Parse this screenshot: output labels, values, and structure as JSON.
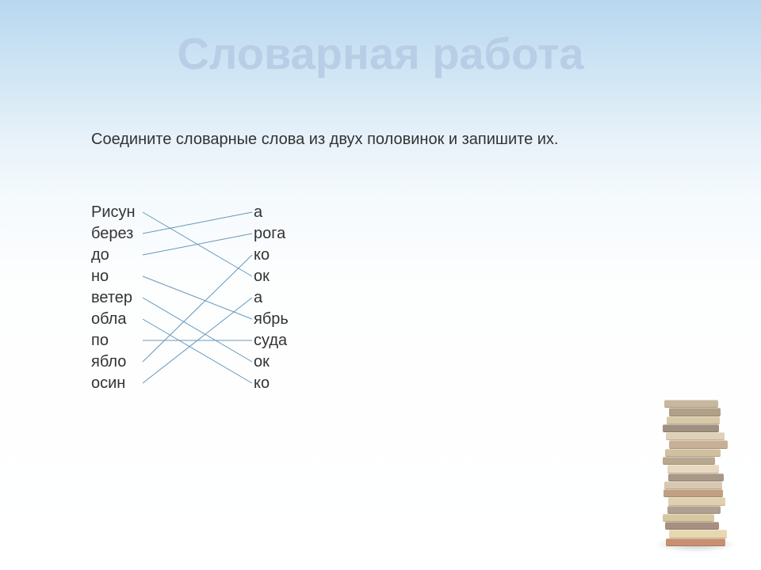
{
  "title": "Словарная работа",
  "instruction": "Соедините словарные слова из двух половинок и запишите их.",
  "leftWords": [
    "Рисун",
    "берез",
    "до",
    "но",
    "ветер",
    "обла",
    "по",
    "ябло",
    "осин"
  ],
  "rightWords": [
    "а",
    "рога",
    "ко",
    "ок",
    "а",
    "ябрь",
    "суда",
    "ок",
    "ко"
  ],
  "lineColor": "#6699bb",
  "titleColor": "#b8cde6",
  "textColor": "#333333",
  "connections": [
    {
      "leftIdx": 0,
      "rightIdx": 3
    },
    {
      "leftIdx": 1,
      "rightIdx": 0
    },
    {
      "leftIdx": 2,
      "rightIdx": 1
    },
    {
      "leftIdx": 3,
      "rightIdx": 5
    },
    {
      "leftIdx": 4,
      "rightIdx": 7
    },
    {
      "leftIdx": 5,
      "rightIdx": 8
    },
    {
      "leftIdx": 6,
      "rightIdx": 6
    },
    {
      "leftIdx": 7,
      "rightIdx": 2
    },
    {
      "leftIdx": 8,
      "rightIdx": 4
    }
  ],
  "bookColors": [
    "#c89070",
    "#e8d8b0",
    "#a89080",
    "#d8c8a0",
    "#b0a090",
    "#e0d0b0",
    "#c0a080",
    "#d8c8b0",
    "#a89888",
    "#e8d8c0",
    "#b8a890",
    "#d0c0a0",
    "#c8b098",
    "#e0d0b8",
    "#a09080",
    "#d8c8a8",
    "#b0a088",
    "#c8b8a0"
  ]
}
